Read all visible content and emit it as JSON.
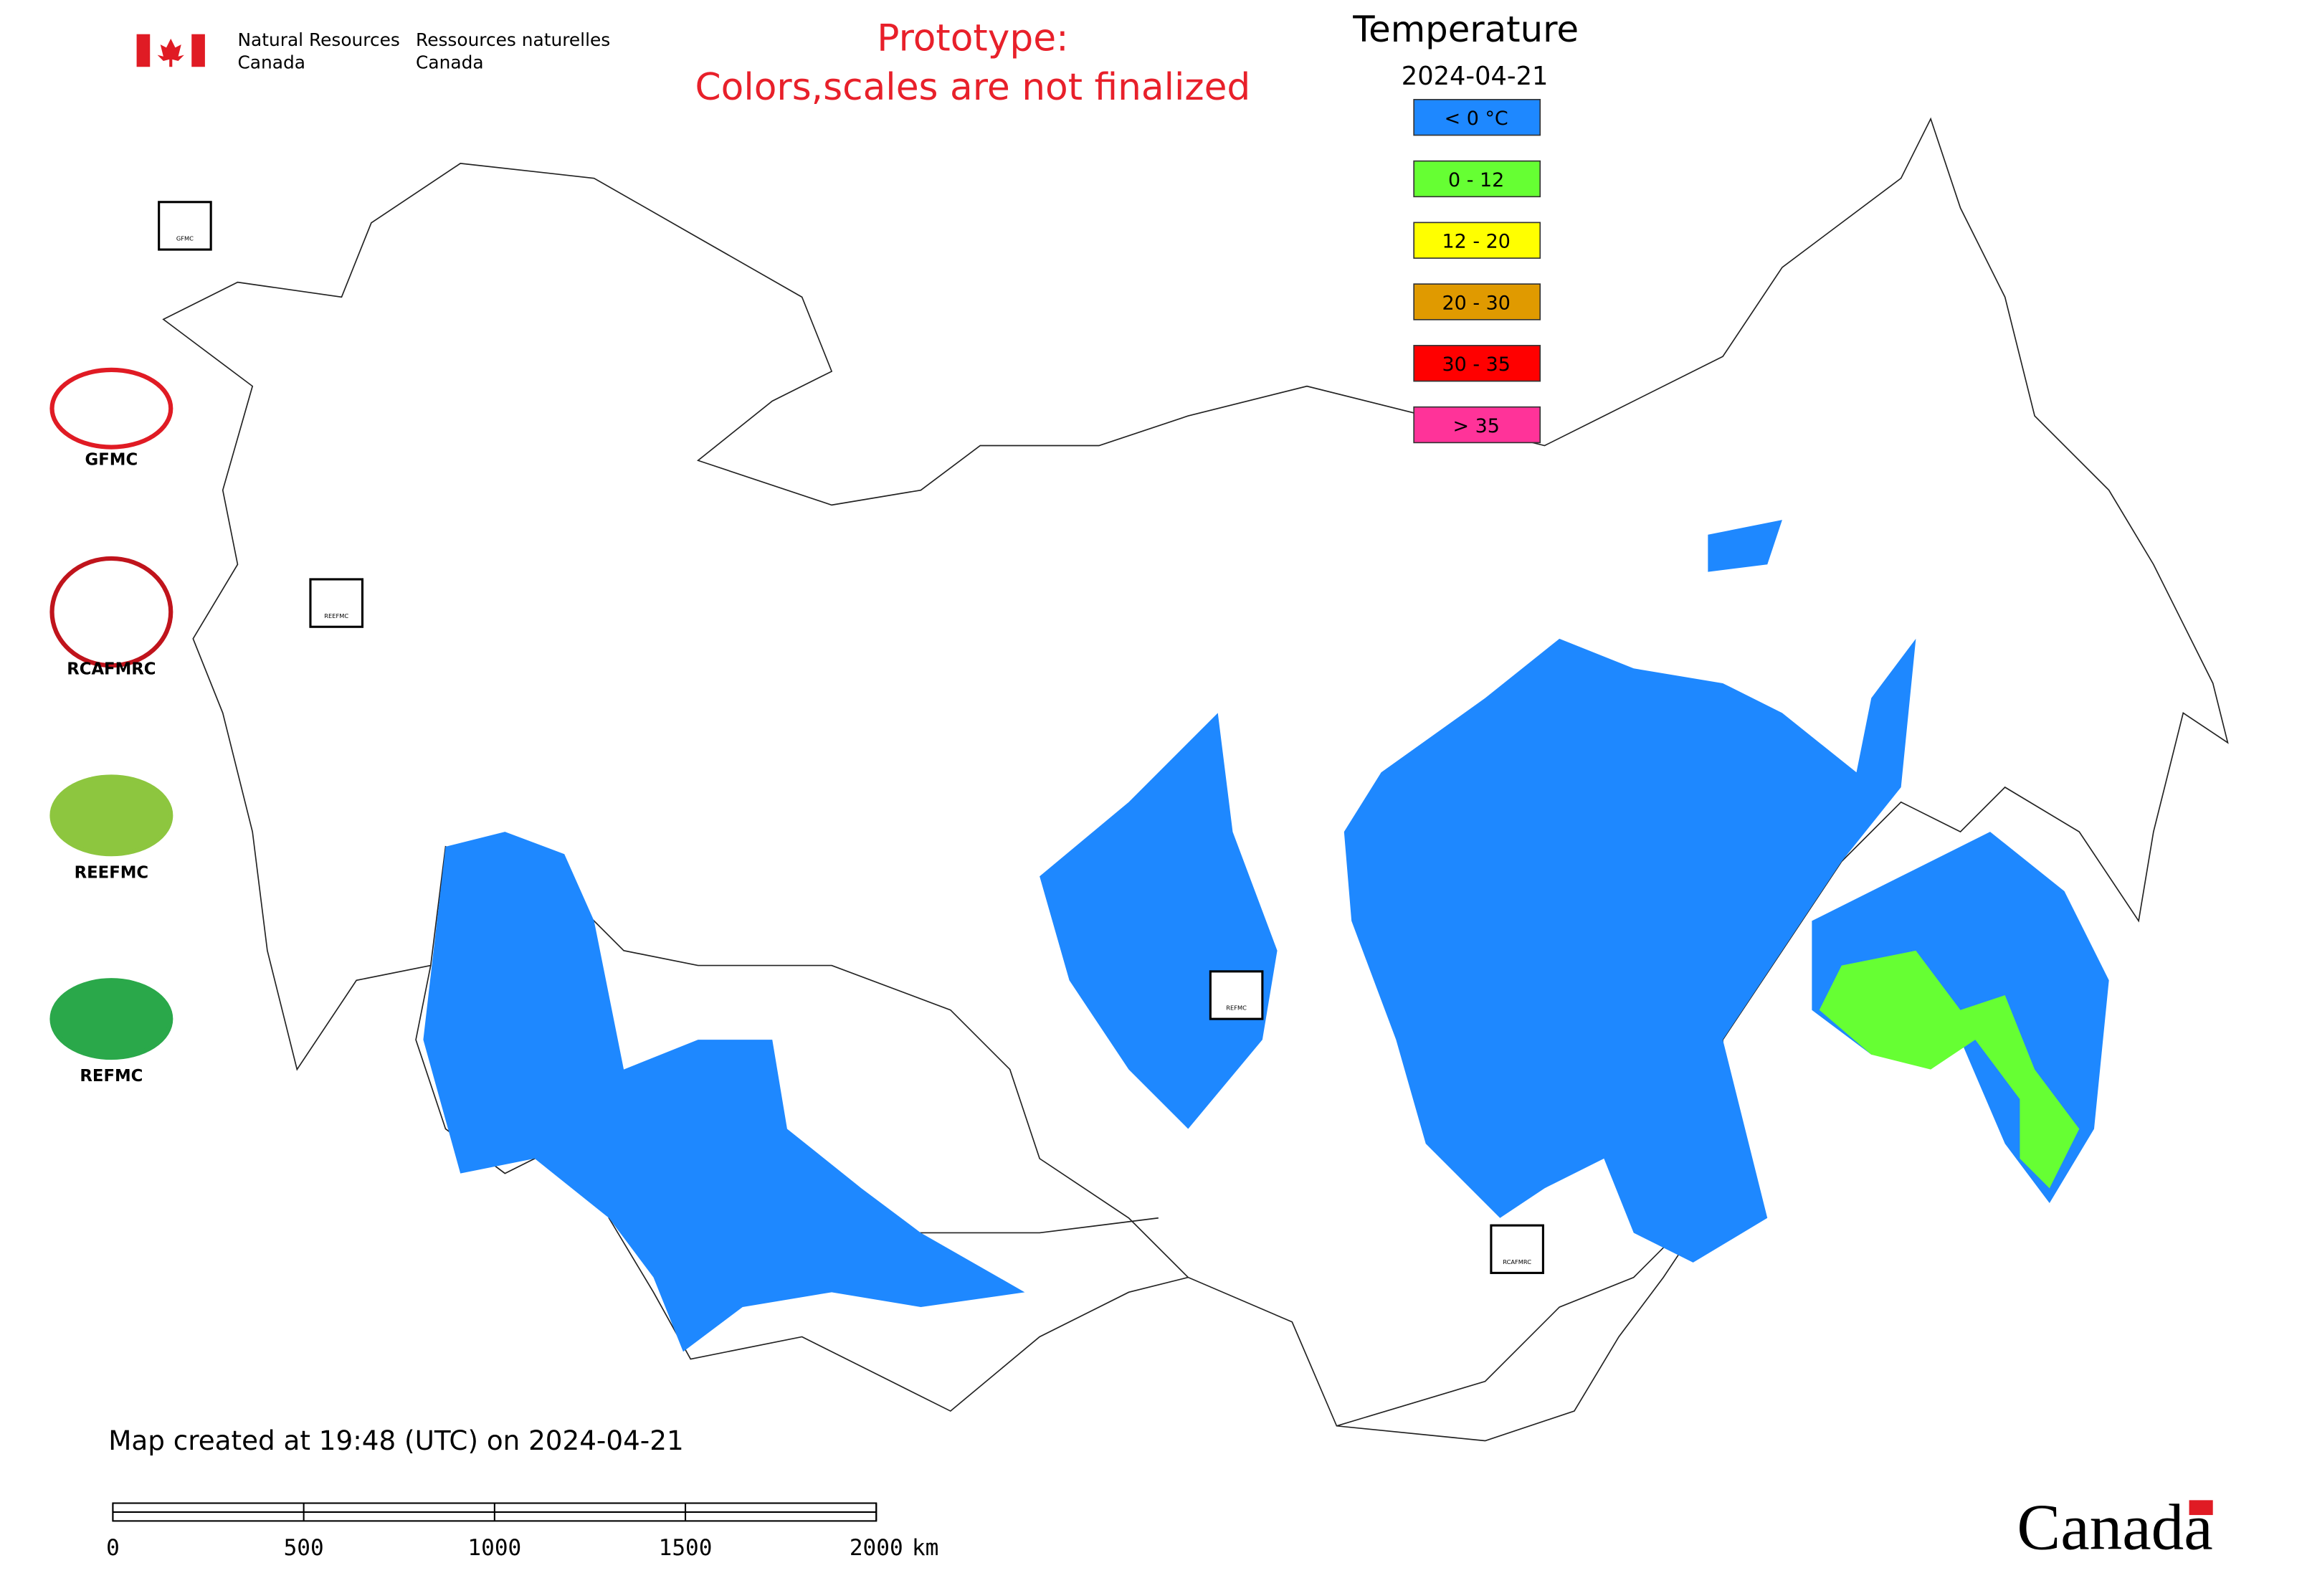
{
  "header": {
    "agency_en_1": "Natural Resources",
    "agency_en_2": "Canada",
    "agency_fr_1": "Ressources naturelles",
    "agency_fr_2": "Canada",
    "notice_1": "Prototype:",
    "notice_2": "Colors,scales are not finalized"
  },
  "legend": {
    "title": "Temperature",
    "date": "2024-04-21",
    "items": [
      {
        "label": "< 0 °C",
        "color": "#1e88ff"
      },
      {
        "label": "0 - 12",
        "color": "#66ff33"
      },
      {
        "label": "12 - 20",
        "color": "#ffff00"
      },
      {
        "label": "20 - 30",
        "color": "#e09a00"
      },
      {
        "label": "30 - 35",
        "color": "#ff0000"
      },
      {
        "label": "> 35",
        "color": "#ff3399"
      }
    ]
  },
  "logos": [
    "GFMC",
    "RCAFMRC",
    "REEFMC",
    "REFMC"
  ],
  "markers": [
    "GFMC",
    "REEFMC",
    "REFMC",
    "RCAFMRC"
  ],
  "footer": {
    "created": "Map created at 19:48 (UTC) on 2024-04-21",
    "wordmark": "Canada"
  },
  "scale_bar": {
    "ticks": [
      0,
      500,
      1000,
      1500,
      2000
    ],
    "unit": "km"
  }
}
